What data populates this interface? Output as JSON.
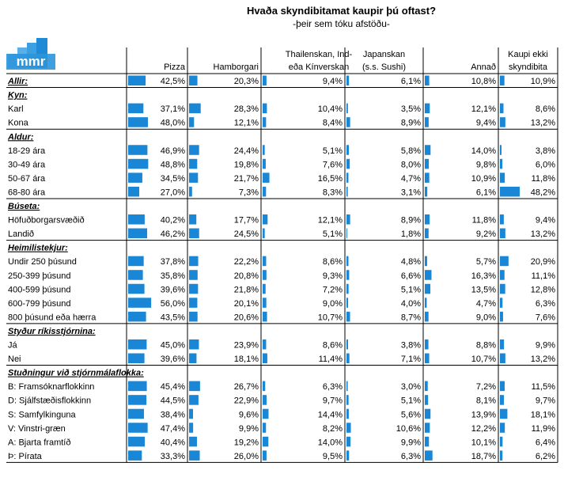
{
  "chart_data": {
    "type": "table",
    "title": "Hvaða skyndibitamat kaupir þú oftast?",
    "subtitle": "-þeir sem tóku afstöðu-",
    "logo_text": "mmr",
    "columns": [
      "Pizza",
      "Hamborgari",
      "Thailenskan, Ind-|eða Kínverskan",
      "Japanskan|(s.s. Sushi)",
      "Annað",
      "Kaupi ekki|skyndibita"
    ],
    "bar_color": "#1a86d6",
    "rows": [
      {
        "label": "Allir:",
        "type": "total",
        "values": [
          "42,5%",
          "20,3%",
          "9,4%",
          "6,1%",
          "10,8%",
          "10,9%"
        ]
      },
      {
        "label": "Kyn:",
        "type": "group"
      },
      {
        "label": "Karl",
        "type": "row",
        "values": [
          "37,1%",
          "28,3%",
          "10,4%",
          "3,5%",
          "12,1%",
          "8,6%"
        ]
      },
      {
        "label": "Kona",
        "type": "row",
        "values": [
          "48,0%",
          "12,1%",
          "8,4%",
          "8,9%",
          "9,4%",
          "13,2%"
        ]
      },
      {
        "label": "Aldur:",
        "type": "group"
      },
      {
        "label": "18-29 ára",
        "type": "row",
        "values": [
          "46,9%",
          "24,4%",
          "5,1%",
          "5,8%",
          "14,0%",
          "3,8%"
        ]
      },
      {
        "label": "30-49 ára",
        "type": "row",
        "values": [
          "48,8%",
          "19,8%",
          "7,6%",
          "8,0%",
          "9,8%",
          "6,0%"
        ]
      },
      {
        "label": "50-67 ára",
        "type": "row",
        "values": [
          "34,5%",
          "21,7%",
          "16,5%",
          "4,7%",
          "10,9%",
          "11,8%"
        ]
      },
      {
        "label": "68-80 ára",
        "type": "row",
        "values": [
          "27,0%",
          "7,3%",
          "8,3%",
          "3,1%",
          "6,1%",
          "48,2%"
        ]
      },
      {
        "label": "Búseta:",
        "type": "group"
      },
      {
        "label": "Höfuðborgarsvæðið",
        "type": "row",
        "values": [
          "40,2%",
          "17,7%",
          "12,1%",
          "8,9%",
          "11,8%",
          "9,4%"
        ]
      },
      {
        "label": "Landið",
        "type": "row",
        "values": [
          "46,2%",
          "24,5%",
          "5,1%",
          "1,8%",
          "9,2%",
          "13,2%"
        ]
      },
      {
        "label": "Heimilistekjur:",
        "type": "group"
      },
      {
        "label": "Undir 250 þúsund",
        "type": "row",
        "values": [
          "37,8%",
          "22,2%",
          "8,6%",
          "4,8%",
          "5,7%",
          "20,9%"
        ]
      },
      {
        "label": "250-399 þúsund",
        "type": "row",
        "values": [
          "35,8%",
          "20,8%",
          "9,3%",
          "6,6%",
          "16,3%",
          "11,1%"
        ]
      },
      {
        "label": "400-599 þúsund",
        "type": "row",
        "values": [
          "39,6%",
          "21,8%",
          "7,2%",
          "5,1%",
          "13,5%",
          "12,8%"
        ]
      },
      {
        "label": "600-799 þúsund",
        "type": "row",
        "values": [
          "56,0%",
          "20,1%",
          "9,0%",
          "4,0%",
          "4,7%",
          "6,3%"
        ]
      },
      {
        "label": "800 þúsund eða hærra",
        "type": "row",
        "values": [
          "43,5%",
          "20,6%",
          "10,7%",
          "8,7%",
          "9,0%",
          "7,6%"
        ]
      },
      {
        "label": "Styður ríkisstjórnina:",
        "type": "group"
      },
      {
        "label": "Já",
        "type": "row",
        "values": [
          "45,0%",
          "23,9%",
          "8,6%",
          "3,8%",
          "8,8%",
          "9,9%"
        ]
      },
      {
        "label": "Nei",
        "type": "row",
        "values": [
          "39,6%",
          "18,1%",
          "11,4%",
          "7,1%",
          "10,7%",
          "13,2%"
        ]
      },
      {
        "label": "Stuðningur við stjórnmálaflokka:",
        "type": "group"
      },
      {
        "label": "B: Framsóknarflokkinn",
        "type": "row",
        "values": [
          "45,4%",
          "26,7%",
          "6,3%",
          "3,0%",
          "7,2%",
          "11,5%"
        ]
      },
      {
        "label": "D: Sjálfstæðisflokkinn",
        "type": "row",
        "values": [
          "44,5%",
          "22,9%",
          "9,7%",
          "5,1%",
          "8,1%",
          "9,7%"
        ]
      },
      {
        "label": "S: Samfylkinguna",
        "type": "row",
        "values": [
          "38,4%",
          "9,6%",
          "14,4%",
          "5,6%",
          "13,9%",
          "18,1%"
        ]
      },
      {
        "label": "V: Vinstri-græn",
        "type": "row",
        "values": [
          "47,4%",
          "9,9%",
          "8,2%",
          "10,6%",
          "12,2%",
          "11,9%"
        ]
      },
      {
        "label": "A: Bjarta framtíð",
        "type": "row",
        "values": [
          "40,4%",
          "19,2%",
          "14,0%",
          "9,9%",
          "10,1%",
          "6,4%"
        ]
      },
      {
        "label": "Þ: Pírata",
        "type": "row",
        "values": [
          "33,3%",
          "26,0%",
          "9,5%",
          "6,3%",
          "18,7%",
          "6,2%"
        ]
      }
    ]
  }
}
